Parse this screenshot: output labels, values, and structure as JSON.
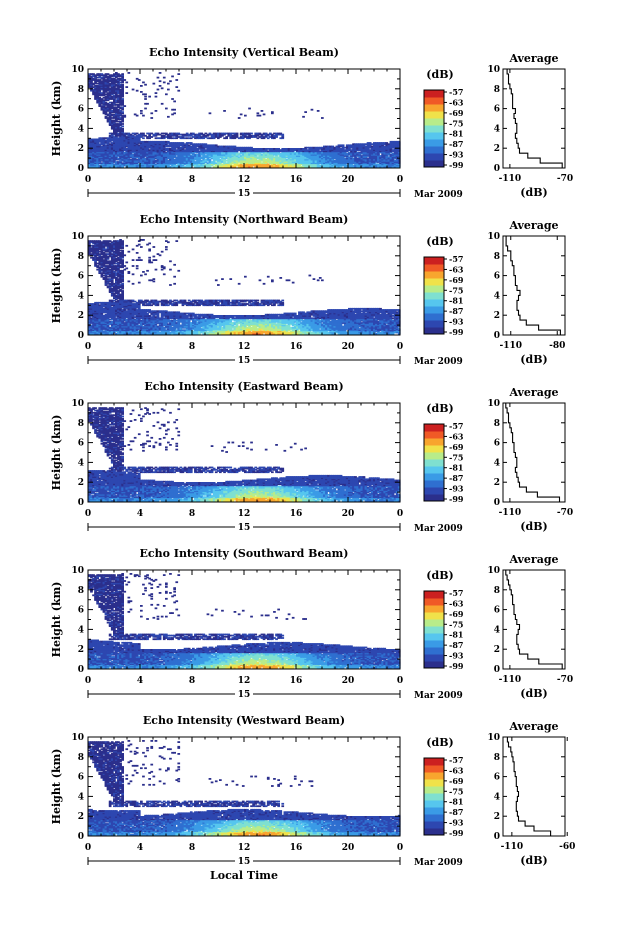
{
  "figure": {
    "xlabel": "Local Time",
    "ylabel": "Height (km)",
    "day_label": "15",
    "date_label": "Mar 2009",
    "colorbar_unit": "(dB)",
    "colorbar_ticks": [
      "-57",
      "-63",
      "-69",
      "-75",
      "-81",
      "-87",
      "-93",
      "-99"
    ],
    "colorbar_colors": [
      "#2b2f8c",
      "#2d47b0",
      "#2f6fd0",
      "#3a9be6",
      "#56c6ee",
      "#7fe0d0",
      "#b8ec8a",
      "#f0e24a",
      "#f8a52e",
      "#f05a26",
      "#cc2020"
    ],
    "avg_title": "Average",
    "avg_xlabel": "(dB)"
  },
  "panels": [
    {
      "title": "Echo Intensity (Vertical Beam)",
      "avg_xticks": [
        "-110",
        "-70"
      ]
    },
    {
      "title": "Echo Intensity (Northward Beam)",
      "avg_xticks": [
        "-110",
        "-80"
      ]
    },
    {
      "title": "Echo Intensity (Eastward Beam)",
      "avg_xticks": [
        "-110",
        "-70"
      ]
    },
    {
      "title": "Echo Intensity (Southward Beam)",
      "avg_xticks": [
        "-110",
        "-70"
      ]
    },
    {
      "title": "Echo Intensity (Westward Beam)",
      "avg_xticks": [
        "-110",
        "-60"
      ]
    }
  ],
  "chart_data": [
    {
      "type": "heatmap",
      "title": "Echo Intensity (Vertical Beam)",
      "xlabel": "",
      "ylabel": "Height (km)",
      "xticks": [
        "0",
        "4",
        "8",
        "12",
        "16",
        "20",
        "0"
      ],
      "yticks": [
        "0",
        "2",
        "4",
        "6",
        "8",
        "10"
      ],
      "xlim": [
        0,
        24
      ],
      "ylim": [
        0,
        10
      ],
      "colorbar": {
        "unit": "(dB)",
        "min": -99,
        "max": -57
      },
      "average_profile": {
        "xlim": [
          -115,
          -70
        ],
        "xticks": [
          -110,
          -70
        ],
        "height": [
          0,
          0.5,
          1,
          1.5,
          2,
          2.5,
          3,
          3.5,
          4,
          4.5,
          5,
          5.5,
          6,
          6.5,
          7,
          7.5,
          8,
          8.5,
          9,
          9.5
        ],
        "values": [
          -72,
          -88,
          -97,
          -103,
          -104,
          -105,
          -106,
          -105,
          -105,
          -106,
          -107,
          -106,
          -108,
          -108,
          -108,
          -109,
          -110,
          -111,
          -111,
          -112
        ]
      }
    },
    {
      "type": "heatmap",
      "title": "Echo Intensity (Northward Beam)",
      "xlabel": "",
      "ylabel": "Height (km)",
      "xticks": [
        "0",
        "4",
        "8",
        "12",
        "16",
        "20",
        "0"
      ],
      "yticks": [
        "0",
        "2",
        "4",
        "6",
        "8",
        "10"
      ],
      "xlim": [
        0,
        24
      ],
      "ylim": [
        0,
        10
      ],
      "colorbar": {
        "unit": "(dB)",
        "min": -99,
        "max": -57
      },
      "average_profile": {
        "xlim": [
          -115,
          -75
        ],
        "xticks": [
          -110,
          -80
        ],
        "height": [
          0,
          0.5,
          1,
          1.5,
          2,
          2.5,
          3,
          3.5,
          4,
          4.5,
          5,
          5.5,
          6,
          6.5,
          7,
          7.5,
          8,
          8.5,
          9,
          9.5
        ],
        "values": [
          -78,
          -92,
          -100,
          -104,
          -105,
          -106,
          -106,
          -105,
          -104,
          -106,
          -107,
          -107,
          -108,
          -108,
          -109,
          -110,
          -110,
          -112,
          -113,
          -113
        ]
      }
    },
    {
      "type": "heatmap",
      "title": "Echo Intensity (Eastward Beam)",
      "xlabel": "",
      "ylabel": "Height (km)",
      "xticks": [
        "0",
        "4",
        "8",
        "12",
        "16",
        "20",
        "0"
      ],
      "yticks": [
        "0",
        "2",
        "4",
        "6",
        "8",
        "10"
      ],
      "xlim": [
        0,
        24
      ],
      "ylim": [
        0,
        10
      ],
      "colorbar": {
        "unit": "(dB)",
        "min": -99,
        "max": -57
      },
      "average_profile": {
        "xlim": [
          -115,
          -70
        ],
        "xticks": [
          -110,
          -70
        ],
        "height": [
          0,
          0.5,
          1,
          1.5,
          2,
          2.5,
          3,
          3.5,
          4,
          4.5,
          5,
          5.5,
          6,
          6.5,
          7,
          7.5,
          8,
          8.5,
          9,
          9.5
        ],
        "values": [
          -74,
          -90,
          -98,
          -103,
          -104,
          -105,
          -106,
          -105,
          -105,
          -106,
          -107,
          -107,
          -108,
          -108,
          -109,
          -110,
          -111,
          -111,
          -112,
          -113
        ]
      }
    },
    {
      "type": "heatmap",
      "title": "Echo Intensity (Southward Beam)",
      "xlabel": "",
      "ylabel": "Height (km)",
      "xticks": [
        "0",
        "4",
        "8",
        "12",
        "16",
        "20",
        "0"
      ],
      "yticks": [
        "0",
        "2",
        "4",
        "6",
        "8",
        "10"
      ],
      "xlim": [
        0,
        24
      ],
      "ylim": [
        0,
        10
      ],
      "colorbar": {
        "unit": "(dB)",
        "min": -99,
        "max": -57
      },
      "average_profile": {
        "xlim": [
          -115,
          -70
        ],
        "xticks": [
          -110,
          -70
        ],
        "height": [
          0,
          0.5,
          1,
          1.5,
          2,
          2.5,
          3,
          3.5,
          4,
          4.5,
          5,
          5.5,
          6,
          6.5,
          7,
          7.5,
          8,
          8.5,
          9,
          9.5
        ],
        "values": [
          -72,
          -89,
          -97,
          -103,
          -104,
          -105,
          -105,
          -104,
          -103,
          -105,
          -106,
          -107,
          -107,
          -108,
          -108,
          -109,
          -110,
          -111,
          -112,
          -113
        ]
      }
    },
    {
      "type": "heatmap",
      "title": "Echo Intensity (Westward Beam)",
      "xlabel": "Local Time",
      "ylabel": "Height (km)",
      "xticks": [
        "0",
        "4",
        "8",
        "12",
        "16",
        "20",
        "0"
      ],
      "yticks": [
        "0",
        "2",
        "4",
        "6",
        "8",
        "10"
      ],
      "xlim": [
        0,
        24
      ],
      "ylim": [
        0,
        10
      ],
      "colorbar": {
        "unit": "(dB)",
        "min": -99,
        "max": -57
      },
      "average_profile": {
        "xlim": [
          -118,
          -62
        ],
        "xticks": [
          -110,
          -60
        ],
        "height": [
          0,
          0.5,
          1,
          1.5,
          2,
          2.5,
          3,
          3.5,
          4,
          4.5,
          5,
          5.5,
          6,
          6.5,
          7,
          7.5,
          8,
          8.5,
          9,
          9.5
        ],
        "values": [
          -75,
          -90,
          -98,
          -104,
          -105,
          -106,
          -106,
          -105,
          -104,
          -105,
          -106,
          -106,
          -107,
          -108,
          -108,
          -109,
          -110,
          -111,
          -113,
          -114
        ]
      }
    }
  ]
}
